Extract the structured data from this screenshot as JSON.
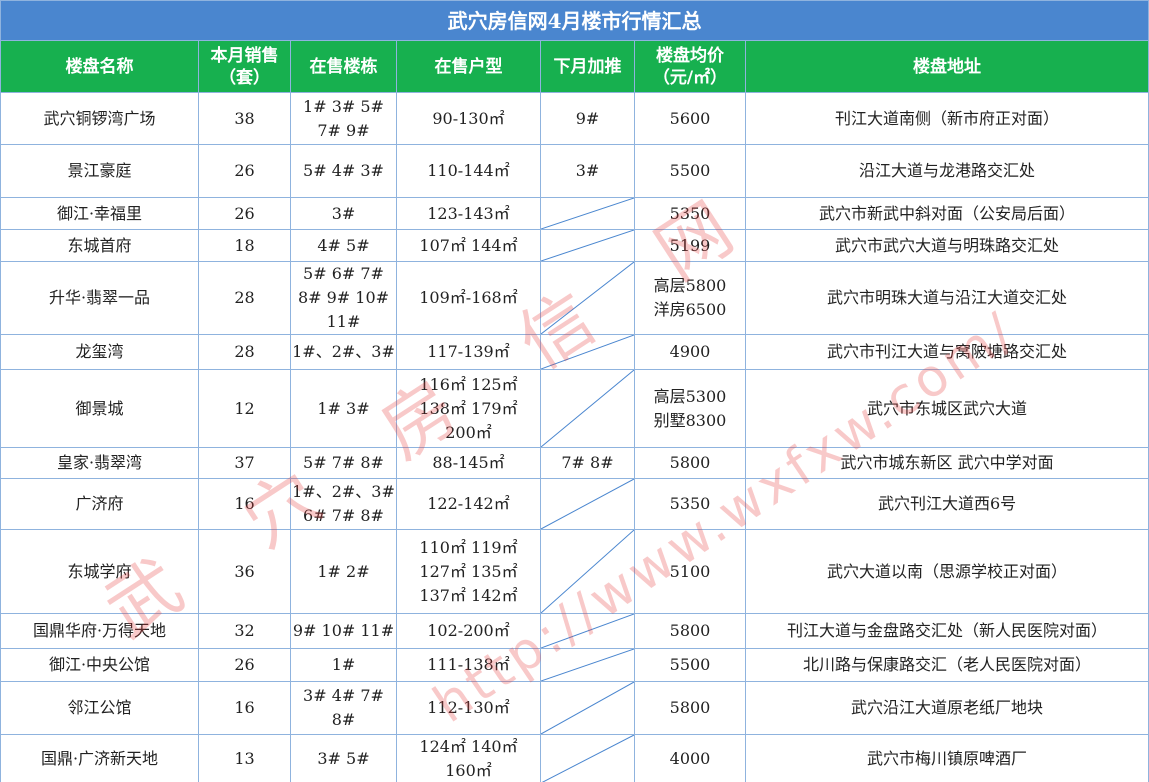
{
  "title": "武穴房信网4月楼市行情汇总",
  "table": {
    "header": [
      "楼盘名称",
      "本月销售\n（套）",
      "在售楼栋",
      "在售户型",
      "下月加推",
      "楼盘均价\n（元/㎡）",
      "楼盘地址"
    ],
    "rows": [
      [
        "武穴铜锣湾广场",
        38,
        "1# 3# 5#\n7# 9#",
        "90-130㎡",
        "9#",
        5600,
        "刊江大道南侧（新市府正对面）"
      ],
      [
        "景江豪庭",
        26,
        "5# 4# 3#",
        "110-144㎡",
        "3#",
        5500,
        "沿江大道与龙港路交汇处"
      ],
      [
        "御江·幸福里",
        26,
        "3#",
        "123-143㎡",
        null,
        5350,
        "武穴市新武中斜对面（公安局后面）"
      ],
      [
        "东城首府",
        18,
        "4# 5#",
        "107㎡ 144㎡",
        null,
        5199,
        "武穴市武穴大道与明珠路交汇处"
      ],
      [
        "升华·翡翠一品",
        28,
        "5# 6# 7#\n8# 9# 10#\n11#",
        "109㎡-168㎡",
        null,
        "高层5800\n洋房6500",
        "武穴市明珠大道与沿江大道交汇处"
      ],
      [
        "龙玺湾",
        28,
        "1#、2#、3#",
        "117-139㎡",
        null,
        4900,
        "武穴市刊江大道与窝陂塘路交汇处"
      ],
      [
        "御景城",
        12,
        "1# 3#",
        "116㎡ 125㎡\n138㎡ 179㎡\n200㎡",
        null,
        "高层5300\n别墅8300",
        "武穴市东城区武穴大道"
      ],
      [
        "皇家·翡翠湾",
        37,
        "5# 7# 8#",
        "88-145㎡",
        "7# 8#",
        5800,
        "武穴市城东新区 武穴中学对面"
      ],
      [
        "广济府",
        16,
        "1#、2#、3#\n6# 7# 8#",
        "122-142㎡",
        null,
        5350,
        "武穴刊江大道西6号"
      ],
      [
        "东城学府",
        36,
        "1# 2#",
        "110㎡ 119㎡\n127㎡ 135㎡\n137㎡ 142㎡",
        null,
        5100,
        "武穴大道以南（思源学校正对面）"
      ],
      [
        "国鼎华府·万得天地",
        32,
        "9# 10# 11#",
        "102-200㎡",
        null,
        5800,
        "刊江大道与金盘路交汇处（新人民医院对面）"
      ],
      [
        "御江·中央公馆",
        26,
        "1#",
        "111-138㎡",
        null,
        5500,
        "北川路与保康路交汇（老人民医院对面）"
      ],
      [
        "邻江公馆",
        16,
        "3# 4# 7#\n8#",
        "112-130㎡",
        null,
        5800,
        "武穴沿江大道原老纸厂地块"
      ],
      [
        "国鼎·广济新天地",
        13,
        "3# 5#",
        "124㎡ 140㎡\n160㎡",
        null,
        4000,
        "武穴市梅川镇原啤酒厂"
      ]
    ]
  },
  "watermark": {
    "site_name": "武穴房信网",
    "url": "http://www.wxfxw.com/"
  }
}
